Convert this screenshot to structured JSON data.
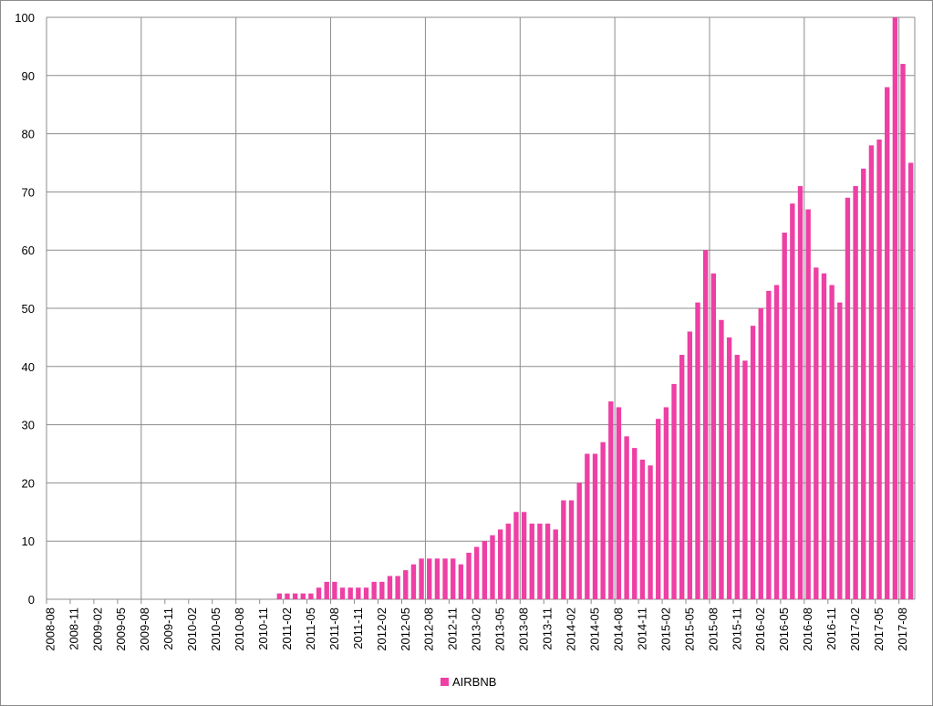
{
  "chart_data": {
    "type": "bar",
    "title": "",
    "xlabel": "",
    "ylabel": "",
    "ylim": [
      0,
      100
    ],
    "yticks": [
      0,
      10,
      20,
      30,
      40,
      50,
      60,
      70,
      80,
      90,
      100
    ],
    "grid": true,
    "legend": "bottom",
    "xtick_labels": [
      "2008-08",
      "2008-11",
      "2009-02",
      "2009-05",
      "2009-08",
      "2009-11",
      "2010-02",
      "2010-05",
      "2010-08",
      "2010-11",
      "2011-02",
      "2011-05",
      "2011-08",
      "2011-11",
      "2012-02",
      "2012-05",
      "2012-08",
      "2012-11",
      "2013-02",
      "2013-05",
      "2013-08",
      "2013-11",
      "2014-02",
      "2014-05",
      "2014-08",
      "2014-11",
      "2015-02",
      "2015-05",
      "2015-08",
      "2015-11",
      "2016-02",
      "2016-05",
      "2016-08",
      "2016-11",
      "2017-02",
      "2017-05",
      "2017-08"
    ],
    "categories": [
      "2008-08",
      "2008-09",
      "2008-10",
      "2008-11",
      "2008-12",
      "2009-01",
      "2009-02",
      "2009-03",
      "2009-04",
      "2009-05",
      "2009-06",
      "2009-07",
      "2009-08",
      "2009-09",
      "2009-10",
      "2009-11",
      "2009-12",
      "2010-01",
      "2010-02",
      "2010-03",
      "2010-04",
      "2010-05",
      "2010-06",
      "2010-07",
      "2010-08",
      "2010-09",
      "2010-10",
      "2010-11",
      "2010-12",
      "2011-01",
      "2011-02",
      "2011-03",
      "2011-04",
      "2011-05",
      "2011-06",
      "2011-07",
      "2011-08",
      "2011-09",
      "2011-10",
      "2011-11",
      "2011-12",
      "2012-01",
      "2012-02",
      "2012-03",
      "2012-04",
      "2012-05",
      "2012-06",
      "2012-07",
      "2012-08",
      "2012-09",
      "2012-10",
      "2012-11",
      "2012-12",
      "2013-01",
      "2013-02",
      "2013-03",
      "2013-04",
      "2013-05",
      "2013-06",
      "2013-07",
      "2013-08",
      "2013-09",
      "2013-10",
      "2013-11",
      "2013-12",
      "2014-01",
      "2014-02",
      "2014-03",
      "2014-04",
      "2014-05",
      "2014-06",
      "2014-07",
      "2014-08",
      "2014-09",
      "2014-10",
      "2014-11",
      "2014-12",
      "2015-01",
      "2015-02",
      "2015-03",
      "2015-04",
      "2015-05",
      "2015-06",
      "2015-07",
      "2015-08",
      "2015-09",
      "2015-10",
      "2015-11",
      "2015-12",
      "2016-01",
      "2016-02",
      "2016-03",
      "2016-04",
      "2016-05",
      "2016-06",
      "2016-07",
      "2016-08",
      "2016-09",
      "2016-10",
      "2016-11",
      "2016-12",
      "2017-01",
      "2017-02",
      "2017-03",
      "2017-04",
      "2017-05",
      "2017-06",
      "2017-07",
      "2017-08",
      "2017-09"
    ],
    "series": [
      {
        "name": "AIRBNB",
        "color": "#ee3fa4",
        "values": [
          0,
          0,
          0,
          0,
          0,
          0,
          0,
          0,
          0,
          0,
          0,
          0,
          0,
          0,
          0,
          0,
          0,
          0,
          0,
          0,
          0,
          0,
          0,
          0,
          0,
          0,
          0,
          0,
          0,
          1,
          1,
          1,
          1,
          1,
          2,
          3,
          3,
          2,
          2,
          2,
          2,
          3,
          3,
          4,
          4,
          5,
          6,
          7,
          7,
          7,
          7,
          7,
          6,
          8,
          9,
          10,
          11,
          12,
          13,
          15,
          15,
          13,
          13,
          13,
          12,
          17,
          17,
          20,
          25,
          25,
          27,
          34,
          33,
          28,
          26,
          24,
          23,
          31,
          33,
          37,
          42,
          46,
          51,
          60,
          56,
          48,
          45,
          42,
          41,
          47,
          50,
          53,
          54,
          63,
          68,
          71,
          67,
          57,
          56,
          54,
          51,
          69,
          71,
          74,
          78,
          79,
          88,
          100,
          92,
          75
        ]
      }
    ]
  }
}
